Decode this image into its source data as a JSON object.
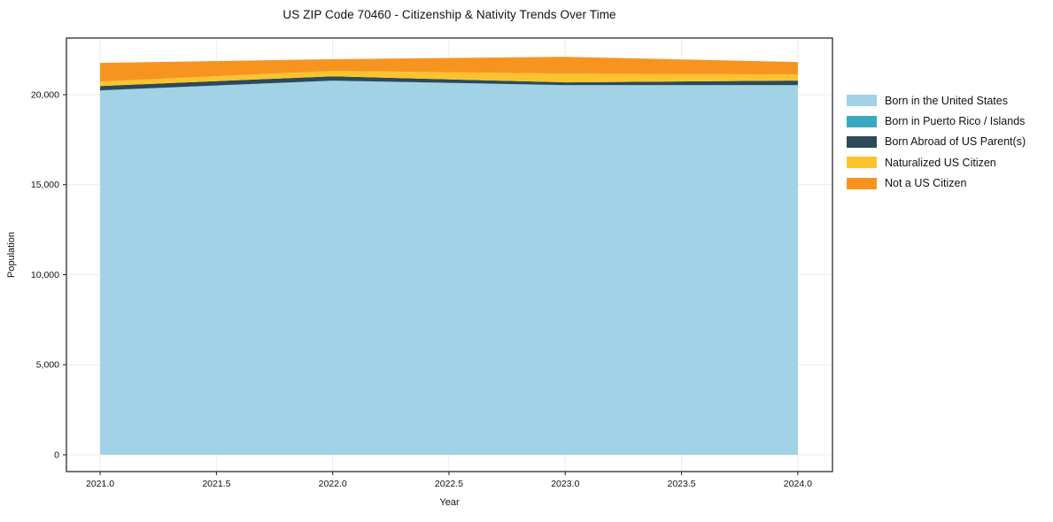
{
  "chart_data": {
    "type": "area",
    "stacked": true,
    "title": "US ZIP Code 70460 - Citizenship & Nativity Trends Over Time",
    "xlabel": "Year",
    "ylabel": "Population",
    "x": [
      2021,
      2022,
      2023,
      2024
    ],
    "series": [
      {
        "name": "Born in the United States",
        "color": "#a2d2e6",
        "values": [
          20230,
          20770,
          20520,
          20520
        ]
      },
      {
        "name": "Born in Puerto Rico / Islands",
        "color": "#3aa9c0",
        "values": [
          12,
          12,
          12,
          12
        ]
      },
      {
        "name": "Born Abroad of US Parent(s)",
        "color": "#2c4a58",
        "values": [
          240,
          240,
          150,
          250
        ]
      },
      {
        "name": "Naturalized US Citizen",
        "color": "#fcc32f",
        "values": [
          250,
          300,
          490,
          340
        ]
      },
      {
        "name": "Not a US Citizen",
        "color": "#f7941f",
        "values": [
          1030,
          650,
          930,
          690
        ]
      }
    ],
    "xticks": [
      2021.0,
      2021.5,
      2022.0,
      2022.5,
      2023.0,
      2023.5,
      2024.0
    ],
    "xtick_labels": [
      "2021.0",
      "2021.5",
      "2022.0",
      "2022.5",
      "2023.0",
      "2023.5",
      "2024.0"
    ],
    "yticks": [
      0,
      5000,
      10000,
      15000,
      20000
    ],
    "ytick_labels": [
      "0",
      "5,000",
      "10,000",
      "15,000",
      "20,000"
    ],
    "xlim": [
      2020.855,
      2024.149
    ],
    "ylim": [
      -934,
      23145
    ],
    "grid": true,
    "grid_color": "#ebebeb",
    "spine_color": "#1a1a1a",
    "tick_label_color": "#111111",
    "legend_position": "right"
  }
}
